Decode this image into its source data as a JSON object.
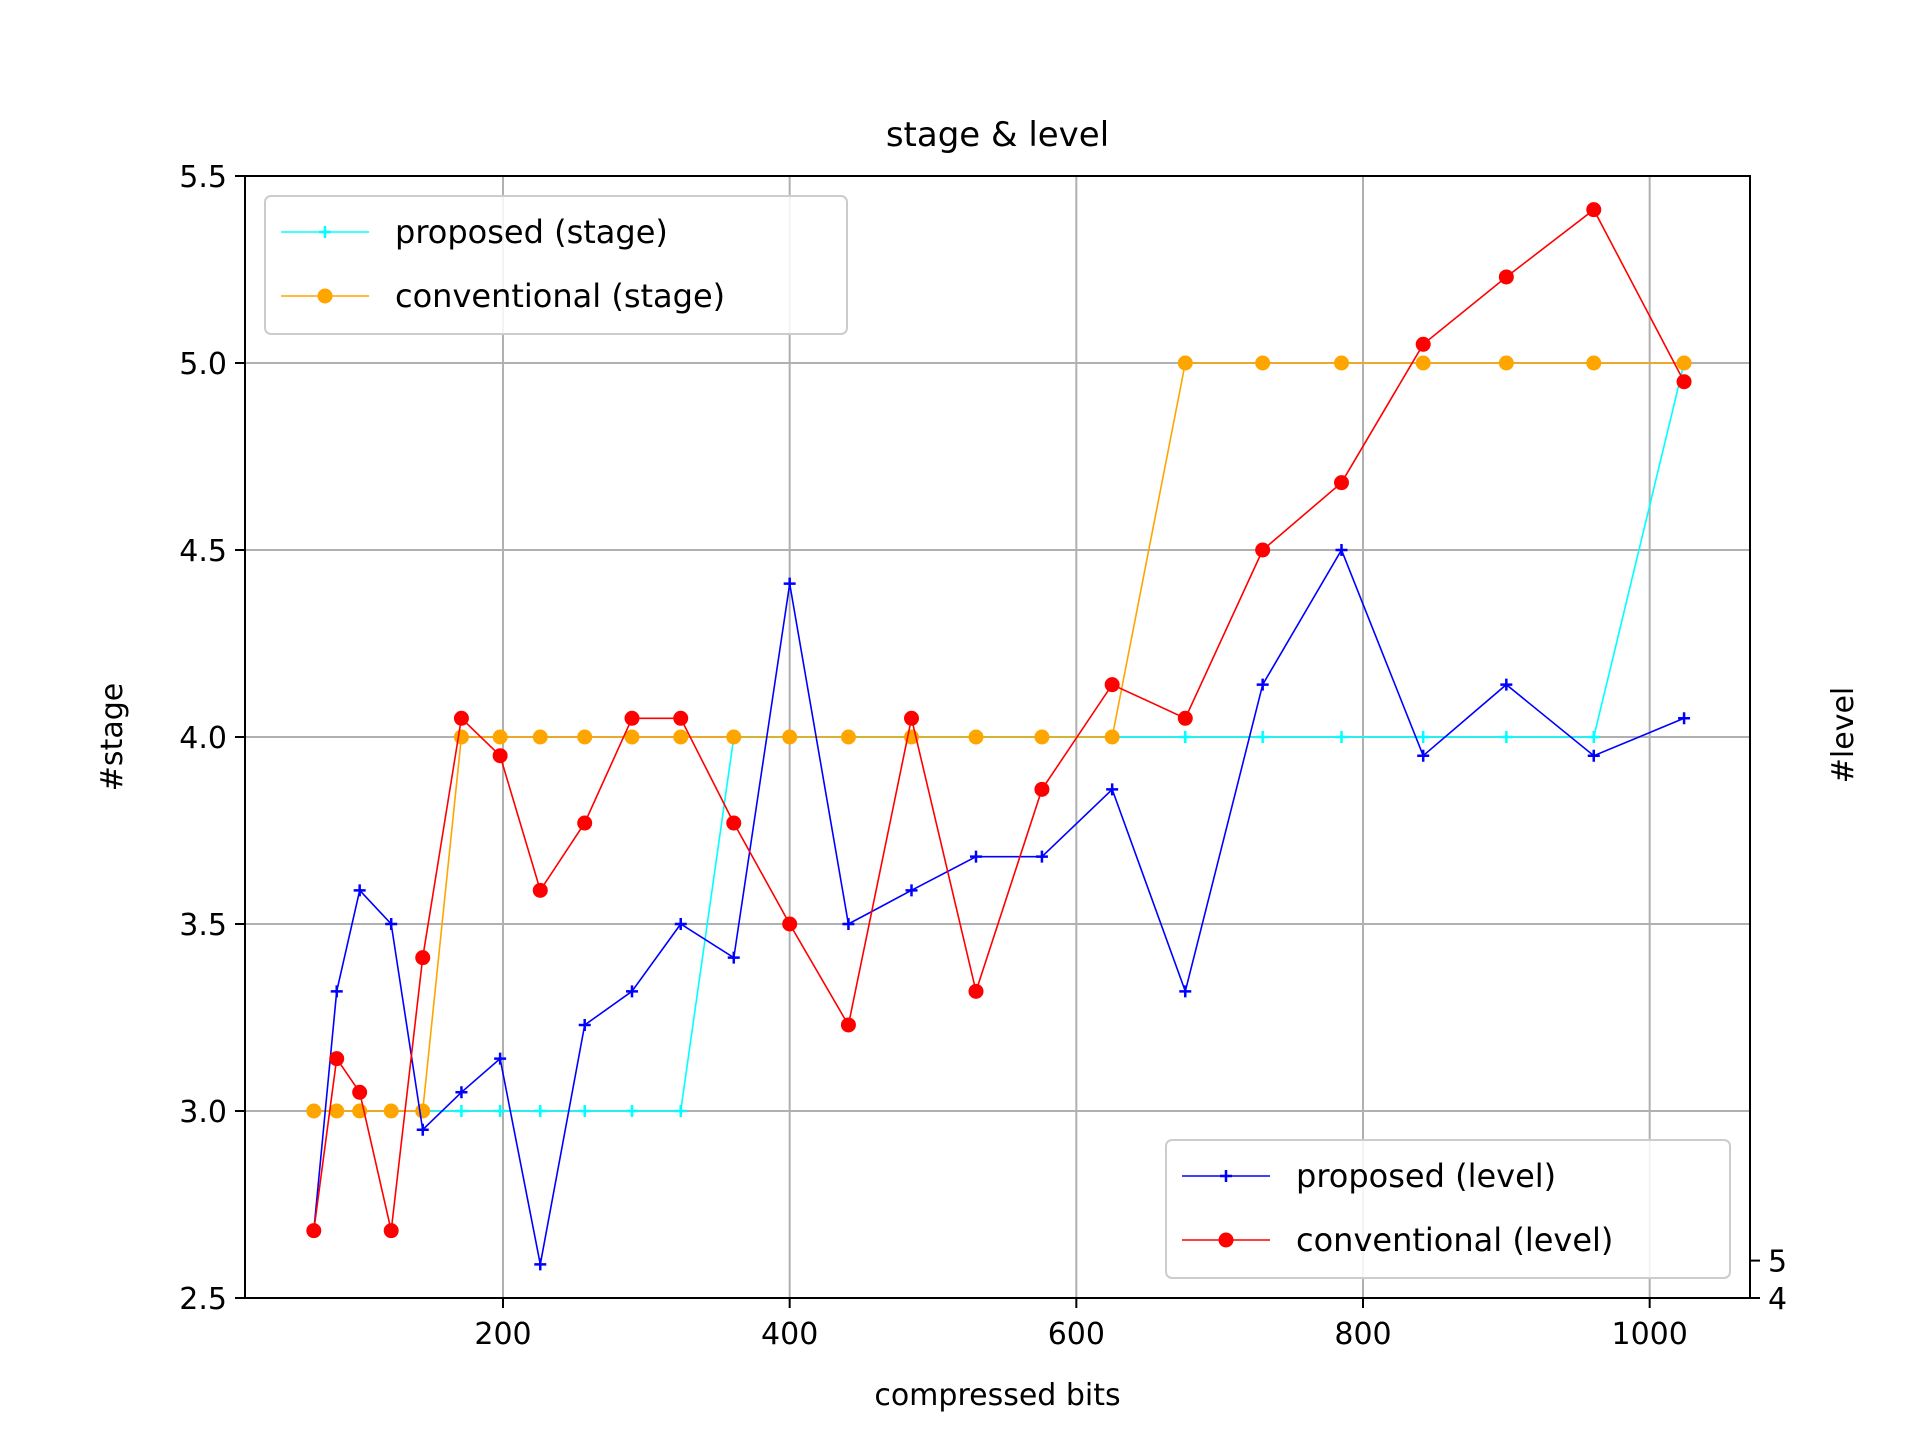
{
  "chart_data": {
    "type": "line",
    "title": "stage & level",
    "xlabel": "compressed bits",
    "ylabel": "#stage",
    "y2label": "#level",
    "xlim": [
      20,
      1070
    ],
    "ylim": [
      2.5,
      5.5
    ],
    "x_ticks": [
      200,
      400,
      600,
      800,
      1000
    ],
    "x_tick_labels": [
      "200",
      "400",
      "600",
      "800",
      "1000"
    ],
    "y_ticks": [
      2.5,
      3.0,
      3.5,
      4.0,
      4.5,
      5.0,
      5.5
    ],
    "y_tick_labels": [
      "2.5",
      "3.0",
      "3.5",
      "4.0",
      "4.5",
      "5.0",
      "5.5"
    ],
    "y2_ticks": [
      4,
      5
    ],
    "y2_tick_labels": [
      "4",
      "5"
    ],
    "y2_tick_positions": [
      2.5,
      2.6
    ],
    "grid": true,
    "legend_stage_position": "upper-left",
    "legend_level_position": "lower-right",
    "series": [
      {
        "name": "proposed (stage)",
        "axis": "stage",
        "color": "#00ffff",
        "marker": "plus",
        "x": [
          144,
          171,
          198,
          226,
          257,
          290,
          324,
          361,
          400,
          441,
          485,
          530,
          576,
          625,
          676,
          730,
          785,
          842,
          900,
          961,
          1024
        ],
        "y": [
          3.0,
          3.0,
          3.0,
          3.0,
          3.0,
          3.0,
          3.0,
          4.0,
          4.0,
          4.0,
          4.0,
          4.0,
          4.0,
          4.0,
          4.0,
          4.0,
          4.0,
          4.0,
          4.0,
          4.0,
          5.0
        ]
      },
      {
        "name": "conventional (stage)",
        "axis": "stage",
        "color": "#ffa500",
        "marker": "circle",
        "x": [
          68,
          84,
          100,
          122,
          144,
          171,
          198,
          226,
          257,
          290,
          324,
          361,
          400,
          441,
          485,
          530,
          576,
          625,
          676,
          730,
          785,
          842,
          900,
          961,
          1024
        ],
        "y": [
          3.0,
          3.0,
          3.0,
          3.0,
          3.0,
          4.0,
          4.0,
          4.0,
          4.0,
          4.0,
          4.0,
          4.0,
          4.0,
          4.0,
          4.0,
          4.0,
          4.0,
          4.0,
          5.0,
          5.0,
          5.0,
          5.0,
          5.0,
          5.0,
          5.0
        ]
      },
      {
        "name": "proposed (level)",
        "axis": "level",
        "color": "#0000ff",
        "marker": "plus",
        "x": [
          68,
          84,
          100,
          122,
          144,
          171,
          198,
          226,
          257,
          290,
          324,
          361,
          400,
          441,
          485,
          530,
          576,
          625,
          676,
          730,
          785,
          842,
          900,
          961,
          1024
        ],
        "y": [
          2.68,
          3.32,
          3.59,
          3.5,
          2.95,
          3.05,
          3.14,
          2.59,
          3.23,
          3.32,
          3.5,
          3.41,
          4.41,
          3.5,
          3.59,
          3.68,
          3.68,
          3.86,
          3.32,
          4.14,
          4.5,
          3.95,
          4.14,
          3.95,
          4.05
        ]
      },
      {
        "name": "conventional (level)",
        "axis": "level",
        "color": "#ff0000",
        "marker": "circle",
        "x": [
          68,
          84,
          100,
          122,
          144,
          171,
          198,
          226,
          257,
          290,
          324,
          361,
          400,
          441,
          485,
          530,
          576,
          625,
          676,
          730,
          785,
          842,
          900,
          961,
          1024
        ],
        "y": [
          2.68,
          3.14,
          3.05,
          2.68,
          3.41,
          4.05,
          3.95,
          3.59,
          3.77,
          4.05,
          4.05,
          3.77,
          3.5,
          3.23,
          4.05,
          3.32,
          3.86,
          4.14,
          4.05,
          4.5,
          4.68,
          5.05,
          5.23,
          5.41,
          4.95
        ]
      }
    ]
  }
}
